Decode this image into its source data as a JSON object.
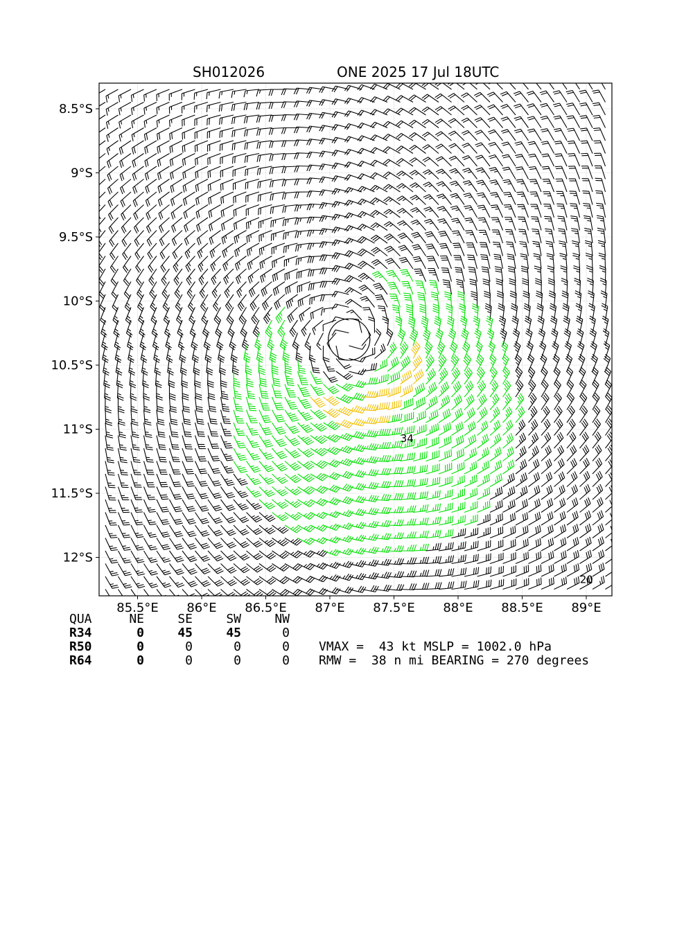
{
  "header": {
    "storm_id": "SH012026",
    "storm_title": "ONE 2025 17 Jul 18UTC"
  },
  "chart_data": {
    "type": "wind-barb-map",
    "xlim": [
      85.2,
      89.2
    ],
    "ylim": [
      -12.3,
      -8.3
    ],
    "x_ticks": [
      85.5,
      86.0,
      86.5,
      87.0,
      87.5,
      88.0,
      88.5,
      89.0
    ],
    "x_tick_labels": [
      "85.5°E",
      "86°E",
      "86.5°E",
      "87°E",
      "87.5°E",
      "88°E",
      "88.5°E",
      "89°E"
    ],
    "y_ticks": [
      -8.5,
      -9.0,
      -9.5,
      -10.0,
      -10.5,
      -11.0,
      -11.5,
      -12.0
    ],
    "y_tick_labels": [
      "8.5°S",
      "9°S",
      "9.5°S",
      "10°S",
      "10.5°S",
      "11°S",
      "11.5°S",
      "12°S"
    ],
    "grid": true,
    "center": {
      "lon": 87.15,
      "lat": -10.3
    },
    "rotation": "clockwise",
    "contours": [
      {
        "level": "20",
        "label": "20"
      },
      {
        "level": "34",
        "label": "34"
      }
    ],
    "colors": {
      "below_34": "#000000",
      "gale_34_49": "#00e000",
      "storm_50_63": "#f0c000",
      "contour": "#000000"
    }
  },
  "radii": {
    "headers": [
      "QUA",
      "NE",
      "SE",
      "SW",
      "NW"
    ],
    "rows": [
      {
        "label": "R34",
        "values": [
          "0",
          "45",
          "45",
          "0"
        ]
      },
      {
        "label": "R50",
        "values": [
          "0",
          "0",
          "0",
          "0"
        ]
      },
      {
        "label": "R64",
        "values": [
          "0",
          "0",
          "0",
          "0"
        ]
      }
    ]
  },
  "summary": {
    "line1": "VMAX =  43 kt MSLP = 1002.0 hPa",
    "line2": "RMW =  38 n mi BEARING = 270 degrees"
  }
}
